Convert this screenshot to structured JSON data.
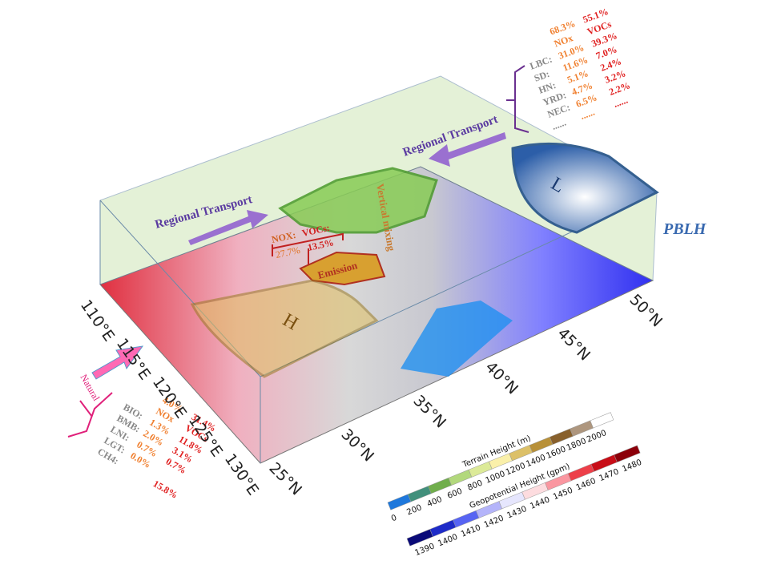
{
  "labels": {
    "regional_transport_left": "Regional Transport",
    "regional_transport_right": "Regional Transport",
    "pblh": "PBLH",
    "low": "L",
    "high": "H",
    "vertical_mixing": "Vertical mixing",
    "emission": "Emission"
  },
  "local": {
    "nox": "NOX:",
    "nox_value": "27.7%",
    "vocs": "VOCs:",
    "vocs_value": "13.5%"
  },
  "regional": {
    "total_nox": "68.3%",
    "total_vocs": "55.1%",
    "header_nox": "NOx",
    "header_vocs": "VOCs",
    "rows": [
      {
        "label": "LBC:",
        "nox": "31.0%",
        "vocs": "39.3%"
      },
      {
        "label": "SD:",
        "nox": "11.6%",
        "vocs": "7.0%"
      },
      {
        "label": "HN:",
        "nox": "5.1%",
        "vocs": "2.4%"
      },
      {
        "label": "YRD:",
        "nox": "4.7%",
        "vocs": "3.2%"
      },
      {
        "label": "NEC:",
        "nox": "6.5%",
        "vocs": "2.2%"
      }
    ],
    "ellipsis": [
      "......",
      "......",
      "......"
    ]
  },
  "natural": {
    "title": "Natural",
    "total_nox": "4.0%",
    "total_vocs": "31.4%",
    "header_nox": "NOx",
    "header_vocs": "VOCs",
    "rows": [
      {
        "label": "BIO:",
        "nox": "1.3%",
        "vocs": "11.8%"
      },
      {
        "label": "BMB:",
        "nox": "2.0%",
        "vocs": "3.1%"
      },
      {
        "label": "LNI:",
        "nox": "0.7%",
        "vocs": "0.7%"
      },
      {
        "label": "LGT:",
        "nox": "0.0%"
      },
      {
        "label": "CH4:",
        "vocs": "15.8%"
      }
    ]
  },
  "longitudes": [
    "110°E",
    "115°E",
    "120°E",
    "125°E",
    "130°E"
  ],
  "latitudes": [
    "25°N",
    "30°N",
    "35°N",
    "40°N",
    "45°N",
    "50°N"
  ],
  "terrain_colorbar": {
    "title": "Terrain Height (m)",
    "ticks": [
      0,
      200,
      400,
      600,
      800,
      1000,
      1200,
      1400,
      1600,
      1800,
      2000
    ]
  },
  "geopotential_colorbar": {
    "title": "Geopotential Height (gpm)",
    "ticks": [
      1390,
      1400,
      1410,
      1420,
      1430,
      1440,
      1450,
      1460,
      1470,
      1480
    ]
  }
}
